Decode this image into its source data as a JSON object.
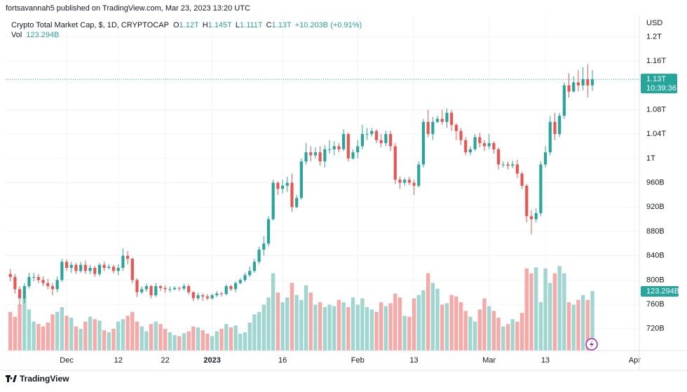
{
  "chart_data": {
    "type": "candlestick",
    "publisher": "fortsavannah5 published on TradingView.com, Mar 23, 2023 13:20 UTC",
    "title": "Crypto Total Market Cap, $, 1D, CRYPTOCAP",
    "ohlc_legend": {
      "o_key": "O",
      "o": "1.12T",
      "h_key": "H",
      "h": "1.145T",
      "l_key": "L",
      "l": "1.111T",
      "c_key": "C",
      "c": "1.13T",
      "change": "+10.203B (+0.91%)"
    },
    "volume_legend": {
      "key": "Vol",
      "value": "123.294B"
    },
    "currency": "USD",
    "footer": "TradingView",
    "up_color": "#26a69a",
    "down_color": "#ef5350",
    "up_volume_color": "#9fd6d0",
    "down_volume_color": "#f7a9a7",
    "grid": true,
    "x": [
      "2022-11-19",
      "2022-11-20",
      "2022-11-21",
      "2022-11-22",
      "2022-11-23",
      "2022-11-24",
      "2022-11-25",
      "2022-11-26",
      "2022-11-27",
      "2022-11-28",
      "2022-11-29",
      "2022-11-30",
      "2022-12-01",
      "2022-12-02",
      "2022-12-03",
      "2022-12-04",
      "2022-12-05",
      "2022-12-06",
      "2022-12-07",
      "2022-12-08",
      "2022-12-09",
      "2022-12-10",
      "2022-12-11",
      "2022-12-12",
      "2022-12-13",
      "2022-12-14",
      "2022-12-15",
      "2022-12-16",
      "2022-12-17",
      "2022-12-18",
      "2022-12-19",
      "2022-12-20",
      "2022-12-21",
      "2022-12-22",
      "2022-12-23",
      "2022-12-24",
      "2022-12-25",
      "2022-12-26",
      "2022-12-27",
      "2022-12-28",
      "2022-12-29",
      "2022-12-30",
      "2022-12-31",
      "2023-01-01",
      "2023-01-02",
      "2023-01-03",
      "2023-01-04",
      "2023-01-05",
      "2023-01-06",
      "2023-01-07",
      "2023-01-08",
      "2023-01-09",
      "2023-01-10",
      "2023-01-11",
      "2023-01-12",
      "2023-01-13",
      "2023-01-14",
      "2023-01-15",
      "2023-01-16",
      "2023-01-17",
      "2023-01-18",
      "2023-01-19",
      "2023-01-20",
      "2023-01-21",
      "2023-01-22",
      "2023-01-23",
      "2023-01-24",
      "2023-01-25",
      "2023-01-26",
      "2023-01-27",
      "2023-01-28",
      "2023-01-29",
      "2023-01-30",
      "2023-01-31",
      "2023-02-01",
      "2023-02-02",
      "2023-02-03",
      "2023-02-04",
      "2023-02-05",
      "2023-02-06",
      "2023-02-07",
      "2023-02-08",
      "2023-02-09",
      "2023-02-10",
      "2023-02-11",
      "2023-02-12",
      "2023-02-13",
      "2023-02-14",
      "2023-02-15",
      "2023-02-16",
      "2023-02-17",
      "2023-02-18",
      "2023-02-19",
      "2023-02-20",
      "2023-02-21",
      "2023-02-22",
      "2023-02-23",
      "2023-02-24",
      "2023-02-25",
      "2023-02-26",
      "2023-02-27",
      "2023-02-28",
      "2023-03-01",
      "2023-03-02",
      "2023-03-03",
      "2023-03-04",
      "2023-03-05",
      "2023-03-06",
      "2023-03-07",
      "2023-03-08",
      "2023-03-09",
      "2023-03-10",
      "2023-03-11",
      "2023-03-12",
      "2023-03-13",
      "2023-03-14",
      "2023-03-15",
      "2023-03-16",
      "2023-03-17",
      "2023-03-18",
      "2023-03-19",
      "2023-03-20",
      "2023-03-21",
      "2023-03-22",
      "2023-03-23"
    ],
    "open": [
      810,
      805,
      785,
      770,
      790,
      805,
      805,
      800,
      795,
      790,
      785,
      800,
      830,
      820,
      825,
      815,
      825,
      815,
      820,
      810,
      825,
      820,
      822,
      815,
      820,
      840,
      835,
      800,
      780,
      785,
      790,
      775,
      790,
      787,
      785,
      785,
      787,
      786,
      790,
      780,
      770,
      775,
      773,
      770,
      775,
      778,
      777,
      790,
      785,
      795,
      800,
      808,
      815,
      830,
      850,
      860,
      900,
      960,
      950,
      955,
      960,
      920,
      935,
      995,
      1010,
      1005,
      1010,
      995,
      1015,
      1015,
      1020,
      1015,
      1040,
      1000,
      1010,
      1020,
      1040,
      1040,
      1045,
      1030,
      1025,
      1040,
      1020,
      965,
      960,
      965,
      960,
      955,
      990,
      1060,
      1040,
      1060,
      1065,
      1060,
      1075,
      1055,
      1045,
      1030,
      1010,
      1015,
      1035,
      1025,
      1020,
      1025,
      1015,
      990,
      990,
      988,
      990,
      975,
      955,
      905,
      900,
      910,
      990,
      1010,
      1060,
      1040,
      1070,
      1120,
      1110,
      1125,
      1120,
      1130,
      1120
    ],
    "high": [
      818,
      810,
      790,
      795,
      812,
      812,
      810,
      806,
      802,
      795,
      806,
      835,
      834,
      830,
      828,
      830,
      832,
      825,
      823,
      828,
      830,
      826,
      825,
      826,
      852,
      848,
      837,
      803,
      790,
      794,
      792,
      795,
      792,
      791,
      790,
      790,
      789,
      794,
      793,
      782,
      779,
      778,
      777,
      778,
      782,
      781,
      793,
      792,
      798,
      803,
      812,
      822,
      835,
      855,
      872,
      905,
      965,
      962,
      965,
      970,
      975,
      940,
      1000,
      1025,
      1020,
      1018,
      1020,
      1022,
      1030,
      1028,
      1025,
      1048,
      1042,
      1015,
      1030,
      1055,
      1050,
      1050,
      1048,
      1040,
      1045,
      1045,
      1025,
      970,
      968,
      970,
      965,
      995,
      1065,
      1080,
      1068,
      1070,
      1080,
      1082,
      1080,
      1058,
      1050,
      1035,
      1020,
      1040,
      1042,
      1030,
      1040,
      1028,
      1018,
      995,
      995,
      996,
      998,
      978,
      958,
      915,
      918,
      995,
      1020,
      1070,
      1075,
      1075,
      1125,
      1140,
      1135,
      1145,
      1150,
      1155,
      1145
    ],
    "low": [
      798,
      778,
      758,
      762,
      786,
      798,
      795,
      790,
      785,
      775,
      780,
      797,
      815,
      812,
      810,
      812,
      810,
      810,
      805,
      806,
      815,
      817,
      811,
      808,
      815,
      826,
      795,
      772,
      777,
      781,
      770,
      772,
      782,
      779,
      780,
      783,
      782,
      783,
      776,
      765,
      767,
      766,
      767,
      768,
      772,
      773,
      775,
      782,
      780,
      793,
      797,
      805,
      812,
      826,
      840,
      855,
      898,
      940,
      942,
      945,
      912,
      918,
      932,
      990,
      995,
      1000,
      988,
      985,
      1008,
      1005,
      1010,
      1012,
      995,
      998,
      1000,
      1015,
      1030,
      1036,
      1025,
      1018,
      1020,
      1012,
      958,
      950,
      955,
      956,
      940,
      952,
      985,
      1035,
      1030,
      1058,
      1055,
      1050,
      1045,
      1030,
      1022,
      1005,
      1005,
      1012,
      1018,
      1012,
      1015,
      1008,
      982,
      985,
      982,
      984,
      968,
      950,
      895,
      875,
      895,
      905,
      985,
      1005,
      1030,
      1035,
      1065,
      1100,
      1108,
      1110,
      1112,
      1100,
      1111
    ],
    "close": [
      805,
      785,
      770,
      790,
      805,
      805,
      800,
      795,
      790,
      785,
      800,
      830,
      820,
      825,
      815,
      825,
      815,
      820,
      810,
      825,
      820,
      822,
      815,
      820,
      840,
      835,
      800,
      780,
      785,
      790,
      775,
      790,
      787,
      785,
      785,
      787,
      786,
      790,
      780,
      770,
      775,
      773,
      770,
      775,
      778,
      777,
      790,
      785,
      795,
      800,
      808,
      815,
      830,
      850,
      860,
      900,
      960,
      950,
      955,
      960,
      920,
      935,
      995,
      1010,
      1005,
      1010,
      995,
      1015,
      1015,
      1020,
      1015,
      1040,
      1000,
      1010,
      1020,
      1040,
      1040,
      1045,
      1030,
      1025,
      1040,
      1020,
      965,
      960,
      965,
      960,
      955,
      990,
      1060,
      1040,
      1060,
      1065,
      1060,
      1075,
      1055,
      1045,
      1030,
      1010,
      1015,
      1035,
      1025,
      1020,
      1025,
      1015,
      990,
      990,
      988,
      990,
      975,
      955,
      905,
      900,
      910,
      990,
      1010,
      1060,
      1040,
      1070,
      1120,
      1110,
      1125,
      1120,
      1130,
      1120,
      1130
    ],
    "volume": [
      80,
      70,
      95,
      110,
      85,
      60,
      55,
      50,
      58,
      75,
      80,
      90,
      72,
      68,
      50,
      45,
      60,
      70,
      65,
      62,
      42,
      38,
      45,
      60,
      65,
      72,
      80,
      60,
      50,
      40,
      55,
      60,
      55,
      45,
      38,
      32,
      30,
      36,
      40,
      50,
      48,
      42,
      35,
      30,
      40,
      45,
      55,
      48,
      52,
      35,
      38,
      58,
      75,
      80,
      95,
      110,
      160,
      120,
      100,
      110,
      140,
      115,
      105,
      135,
      120,
      95,
      100,
      90,
      95,
      92,
      105,
      100,
      90,
      110,
      95,
      108,
      90,
      85,
      80,
      100,
      92,
      98,
      118,
      110,
      72,
      70,
      108,
      115,
      125,
      160,
      140,
      128,
      95,
      98,
      115,
      112,
      100,
      82,
      70,
      60,
      85,
      108,
      92,
      82,
      68,
      50,
      55,
      65,
      60,
      78,
      170,
      160,
      172,
      100,
      170,
      140,
      160,
      175,
      160,
      100,
      95,
      105,
      115,
      105,
      123.294
    ],
    "ylim": [
      684,
      1235
    ],
    "yticks": [
      {
        "value": 720,
        "label": "720B"
      },
      {
        "value": 760,
        "label": "760B"
      },
      {
        "value": 800,
        "label": "800B"
      },
      {
        "value": 840,
        "label": "840B"
      },
      {
        "value": 880,
        "label": "880B"
      },
      {
        "value": 920,
        "label": "920B"
      },
      {
        "value": 960,
        "label": "960B"
      },
      {
        "value": 1000,
        "label": "1T"
      },
      {
        "value": 1040,
        "label": "1.04T"
      },
      {
        "value": 1080,
        "label": "1.08T"
      },
      {
        "value": 1160,
        "label": "1.16T"
      },
      {
        "value": 1200,
        "label": "1.2T"
      }
    ],
    "y2lim": [
      0,
      693
    ],
    "xlim": [
      "2022-11-18",
      "2023-04-02"
    ],
    "xticks": [
      {
        "value": "2022-12-01",
        "label": "Dec"
      },
      {
        "value": "2022-12-12",
        "label": "12"
      },
      {
        "value": "2022-12-22",
        "label": "22"
      },
      {
        "value": "2023-01-01",
        "label": "2023"
      },
      {
        "value": "2023-01-16",
        "label": "16"
      },
      {
        "value": "2023-02-01",
        "label": "Feb"
      },
      {
        "value": "2023-02-13",
        "label": "13"
      },
      {
        "value": "2023-03-01",
        "label": "Mar"
      },
      {
        "value": "2023-03-13",
        "label": "13"
      },
      {
        "value": "2023-04-01",
        "label": "Apr"
      }
    ],
    "last_price": {
      "value": 1130,
      "label": "1.13T",
      "countdown": "10:39:36"
    },
    "last_volume": {
      "value": 123.294,
      "label": "123.294B"
    }
  }
}
